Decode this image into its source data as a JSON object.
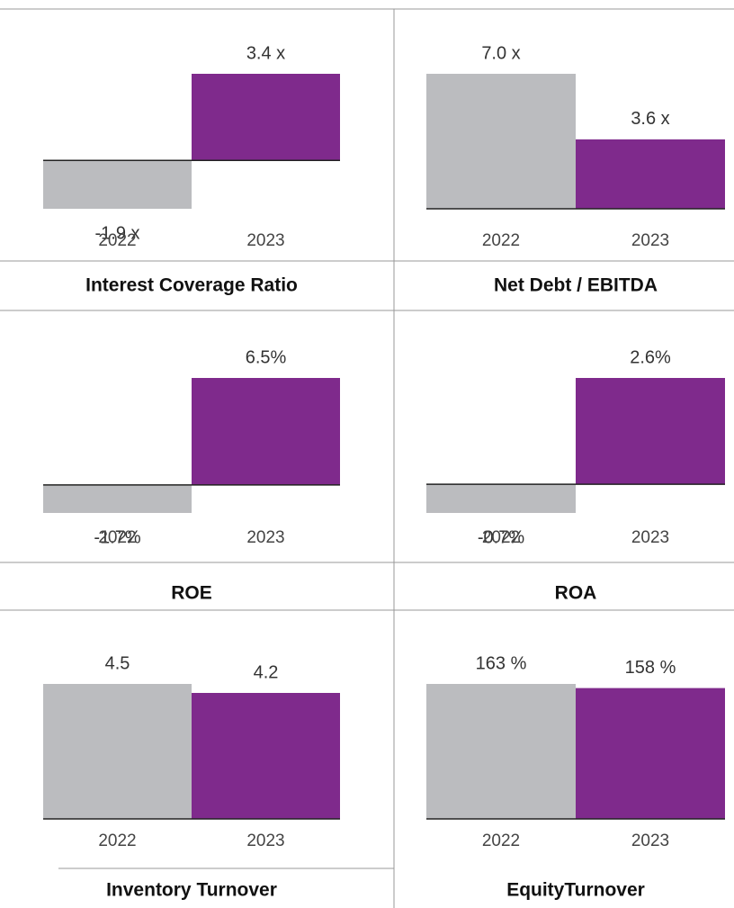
{
  "chart_data": [
    {
      "type": "bar",
      "title": "Interest Coverage Ratio",
      "categories": [
        "2022",
        "2023"
      ],
      "values": [
        -1.9,
        3.4
      ],
      "value_labels": [
        "-1.9 x",
        "3.4 x"
      ],
      "colors": [
        "#bbbcbf",
        "#7f2a8c"
      ]
    },
    {
      "type": "bar",
      "title": "Net Debt / EBITDA",
      "categories": [
        "2022",
        "2023"
      ],
      "values": [
        7.0,
        3.6
      ],
      "value_labels": [
        "7.0 x",
        "3.6 x"
      ],
      "colors": [
        "#bbbcbf",
        "#7f2a8c"
      ]
    },
    {
      "type": "bar",
      "title": "ROE",
      "categories": [
        "2022",
        "2023"
      ],
      "values": [
        -1.7,
        6.5
      ],
      "value_labels": [
        "-1.7%",
        "6.5%"
      ],
      "colors": [
        "#bbbcbf",
        "#7f2a8c"
      ]
    },
    {
      "type": "bar",
      "title": "ROA",
      "categories": [
        "2022",
        "2023"
      ],
      "values": [
        -0.7,
        2.6
      ],
      "value_labels": [
        "-0.7%",
        "2.6%"
      ],
      "colors": [
        "#bbbcbf",
        "#7f2a8c"
      ]
    },
    {
      "type": "bar",
      "title": "Inventory Turnover",
      "categories": [
        "2022",
        "2023"
      ],
      "values": [
        4.5,
        4.2
      ],
      "colors": [
        "#bbbcbf",
        "#7f2a8c"
      ]
    },
    {
      "type": "bar",
      "title": "EquityTurnover",
      "categories": [
        "2022",
        "2023"
      ],
      "values": [
        163,
        158
      ],
      "value_labels": [
        "163 %",
        "158 %"
      ],
      "colors": [
        "#bbbcbf",
        "#7f2a8c"
      ]
    }
  ]
}
